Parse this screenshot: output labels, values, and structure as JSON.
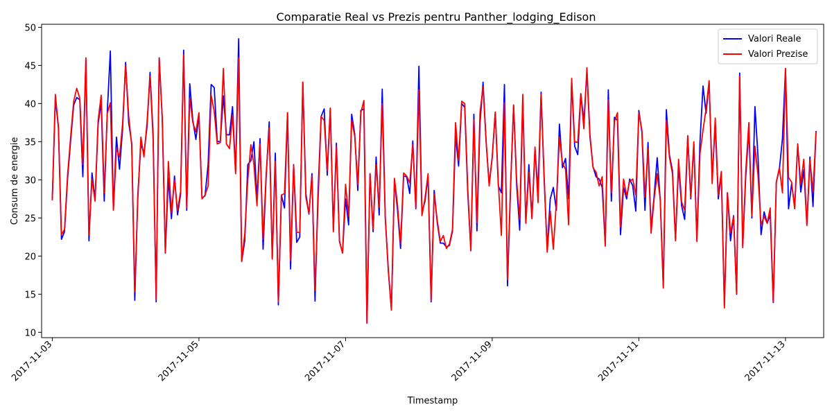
{
  "chart_data": {
    "type": "line",
    "title": "Comparatie Real vs Prezis pentru Panther_lodging_Edison",
    "xlabel": "Timestamp",
    "ylabel": "Consum de energie",
    "xlim": [
      "2017-11-02T20:30",
      "2017-11-13T12:30"
    ],
    "ylim": [
      9.3,
      50.4
    ],
    "yticks": [
      10,
      15,
      20,
      25,
      30,
      35,
      40,
      45,
      50
    ],
    "xticks": [
      "2017-11-03",
      "2017-11-05",
      "2017-11-07",
      "2017-11-09",
      "2017-11-11",
      "2017-11-13"
    ],
    "x_start": "2017-11-03T00:00",
    "x_step_hours": 1,
    "grid": false,
    "legend_position": "top-right",
    "series": [
      {
        "name": "Valori Reale",
        "color": "#0000ff",
        "values": [
          27.5,
          40.6,
          36.9,
          22.2,
          23.2,
          30.1,
          35.1,
          39.8,
          40.8,
          40.5,
          30.4,
          45.8,
          22.0,
          30.9,
          27.4,
          37.3,
          40.2,
          27.2,
          38.9,
          46.9,
          26.1,
          35.6,
          31.4,
          36.6,
          45.4,
          37.5,
          34.8,
          14.2,
          28.1,
          34.7,
          33.5,
          36.9,
          44.1,
          36.0,
          14.0,
          46.0,
          37.9,
          20.4,
          30.2,
          24.9,
          30.5,
          25.4,
          28.1,
          47.0,
          26.0,
          42.6,
          37.8,
          35.3,
          38.4,
          27.6,
          27.9,
          32.0,
          42.5,
          42.1,
          35.0,
          35.1,
          41.0,
          35.9,
          35.9,
          39.6,
          31.1,
          48.5,
          19.3,
          22.0,
          32.0,
          32.5,
          35.0,
          27.5,
          35.4,
          20.9,
          30.3,
          37.6,
          19.7,
          33.5,
          13.6,
          28.0,
          26.3,
          38.8,
          18.3,
          32.0,
          21.8,
          22.5,
          42.8,
          28.2,
          25.5,
          30.8,
          14.1,
          28.6,
          38.3,
          39.3,
          30.6,
          39.4,
          23.4,
          34.8,
          22.0,
          20.4,
          27.5,
          24.1,
          38.6,
          36.0,
          28.6,
          39.1,
          39.3,
          11.2,
          30.8,
          23.2,
          33.0,
          25.4,
          41.9,
          25.0,
          18.0,
          13.0,
          30.0,
          26.0,
          21.0,
          30.5,
          30.4,
          28.2,
          35.1,
          26.2,
          44.9,
          25.7,
          27.2,
          30.5,
          14.0,
          28.6,
          24.4,
          21.7,
          21.7,
          21.2,
          21.4,
          23.3,
          35.8,
          31.8,
          40.0,
          39.5,
          28.3,
          20.7,
          38.6,
          23.3,
          37.4,
          42.8,
          35.0,
          29.4,
          33.0,
          38.8,
          29.2,
          28.3,
          42.5,
          16.1,
          28.8,
          39.8,
          29.3,
          23.4,
          40.5,
          24.4,
          32.0,
          25.0,
          34.0,
          28.6,
          41.5,
          30.0,
          20.9,
          27.5,
          29.0,
          26.0,
          37.3,
          31.6,
          32.8,
          27.5,
          43.0,
          34.4,
          33.3,
          41.3,
          37.7,
          44.2,
          35.6,
          31.7,
          30.4,
          30.1,
          29.0,
          21.5,
          41.8,
          27.2,
          38.2,
          37.8,
          22.8,
          29.0,
          27.5,
          30.1,
          29.2,
          25.9,
          39.1,
          36.2,
          26.0,
          34.9,
          23.5,
          27.9,
          32.9,
          27.4,
          16.1,
          39.2,
          33.3,
          31.2,
          22.2,
          31.8,
          26.6,
          24.8,
          35.6,
          27.5,
          34.7,
          22.1,
          34.9,
          42.3,
          38.7,
          42.8,
          30.2,
          37.3,
          27.5,
          30.7,
          13.5,
          28.3,
          22.0,
          25.3,
          15.0,
          44.0,
          21.3,
          30.5,
          36.6,
          25.0,
          39.6,
          33.1,
          22.8,
          25.8,
          24.3,
          25.4,
          13.9,
          29.7,
          31.4,
          35.4,
          44.6,
          26.2,
          29.5,
          26.5,
          34.7,
          28.4,
          31.3,
          24.2,
          33.0,
          26.5,
          36.4
        ]
      },
      {
        "name": "Valori Prezise",
        "color": "#ff0000",
        "values": [
          27.3,
          41.2,
          37.0,
          22.8,
          23.5,
          30.6,
          35.6,
          40.3,
          42.0,
          40.7,
          32.0,
          46.0,
          22.8,
          30.1,
          27.2,
          37.8,
          41.1,
          28.3,
          38.7,
          40.1,
          26.0,
          34.1,
          33.0,
          37.3,
          45.0,
          38.4,
          34.5,
          15.3,
          27.5,
          35.6,
          33.0,
          37.5,
          43.6,
          35.3,
          14.3,
          45.9,
          38.1,
          20.5,
          32.4,
          25.7,
          30.0,
          26.0,
          28.5,
          46.4,
          26.3,
          40.7,
          37.5,
          36.3,
          38.8,
          27.5,
          28.0,
          29.2,
          41.1,
          39.0,
          34.7,
          34.9,
          44.6,
          34.7,
          34.1,
          38.5,
          30.8,
          46.0,
          19.3,
          22.9,
          30.0,
          34.6,
          32.0,
          26.6,
          34.7,
          22.2,
          30.7,
          36.8,
          19.6,
          32.4,
          14.0,
          28.0,
          28.2,
          38.8,
          19.4,
          31.9,
          23.1,
          23.1,
          42.8,
          27.7,
          25.6,
          30.5,
          15.5,
          27.2,
          38.3,
          37.8,
          31.2,
          39.3,
          23.2,
          34.4,
          21.9,
          20.4,
          29.4,
          25.2,
          37.8,
          35.7,
          29.4,
          38.8,
          40.4,
          11.2,
          30.8,
          23.5,
          32.0,
          26.4,
          40.0,
          25.0,
          18.2,
          12.9,
          30.2,
          26.7,
          21.6,
          30.9,
          30.5,
          29.6,
          34.6,
          26.3,
          41.8,
          25.3,
          27.6,
          30.8,
          14.2,
          28.1,
          24.7,
          21.9,
          22.7,
          21.0,
          21.6,
          23.5,
          37.5,
          32.5,
          40.3,
          40.0,
          28.8,
          20.7,
          37.9,
          24.4,
          38.8,
          42.2,
          35.1,
          29.2,
          32.9,
          38.9,
          29.6,
          22.7,
          40.1,
          16.9,
          29.1,
          39.8,
          29.9,
          24.8,
          41.2,
          24.3,
          31.0,
          24.9,
          34.3,
          27.0,
          41.2,
          30.5,
          20.5,
          25.9,
          20.9,
          27.1,
          35.6,
          32.2,
          31.4,
          24.1,
          43.3,
          35.0,
          34.9,
          41.3,
          36.7,
          44.7,
          35.9,
          31.6,
          31.0,
          29.2,
          30.4,
          21.3,
          40.5,
          28.3,
          37.6,
          38.8,
          23.8,
          30.1,
          27.9,
          29.8,
          30.1,
          28.0,
          38.8,
          36.5,
          27.7,
          34.1,
          23.0,
          27.5,
          30.8,
          27.4,
          15.8,
          37.8,
          33.0,
          30.8,
          22.0,
          32.7,
          27.1,
          26.0,
          35.8,
          27.7,
          35.0,
          21.9,
          33.4,
          36.5,
          39.3,
          43.0,
          29.5,
          38.1,
          28.0,
          31.1,
          13.2,
          28.3,
          23.0,
          25.2,
          15.1,
          43.6,
          21.1,
          31.2,
          37.5,
          25.3,
          34.4,
          30.6,
          24.1,
          25.2,
          24.3,
          26.3,
          14.0,
          29.7,
          31.6,
          28.3,
          44.6,
          30.3,
          29.7,
          26.2,
          34.6,
          29.4,
          32.7,
          24.0,
          32.6,
          28.4,
          36.3
        ]
      }
    ]
  }
}
